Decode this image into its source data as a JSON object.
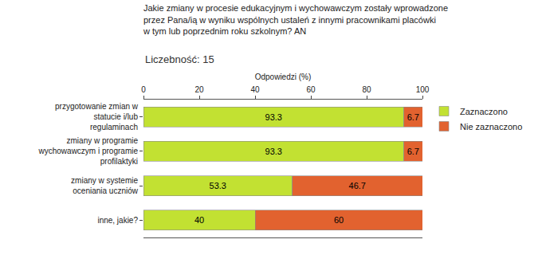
{
  "chart_data": {
    "type": "bar",
    "orientation": "horizontal",
    "stacked": true,
    "title": "Jakie zmiany w procesie edukacyjnym i wychowawczym zostały wprowadzone przez Pana/ią w wyniku wspólnych ustaleń z innymi pracownikami placówki w tym lub poprzednim roku szkolnym? AN",
    "subtitle": "Liczebność: 15",
    "x_label": "Odpowiedzi (%)",
    "categories": [
      "przygotowanie zmian w statucie i/lub regulaminach",
      "zmiany w programie wychowawczym i programie profilaktyki",
      "zmiany w systemie oceniania uczniów",
      "inne, jakie?"
    ],
    "series": [
      {
        "name": "Zaznaczono",
        "color": "#c2e132",
        "values": [
          93.3,
          93.3,
          53.3,
          40
        ]
      },
      {
        "name": "Nie zaznaczono",
        "color": "#e2622f",
        "values": [
          6.7,
          6.7,
          46.7,
          60
        ]
      }
    ],
    "xlim": [
      0,
      100
    ],
    "xticks": [
      0,
      20,
      40,
      60,
      80,
      100
    ],
    "grid": false,
    "legend": "top right",
    "data_labels": true
  }
}
